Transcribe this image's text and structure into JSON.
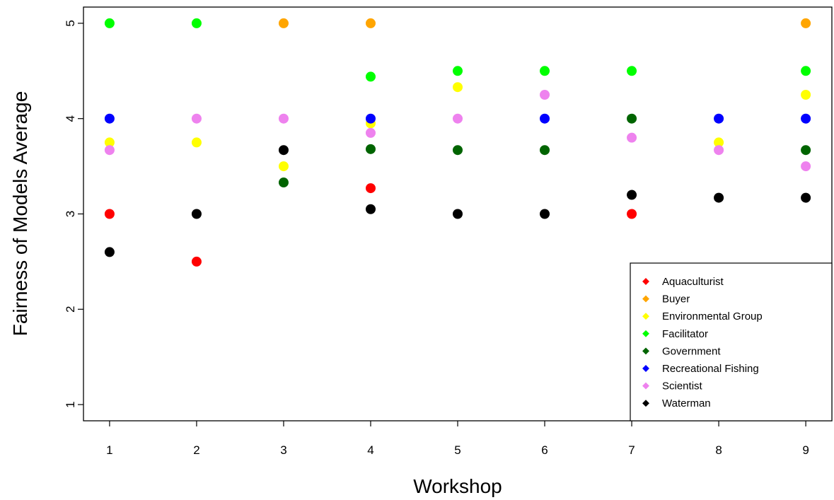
{
  "chart_data": {
    "type": "scatter",
    "xlabel": "Workshop",
    "ylabel": "Fairness of Models Average",
    "xlim": [
      0.7,
      9.3
    ],
    "ylim": [
      0.83,
      5.17
    ],
    "x_ticks": [
      1,
      2,
      3,
      4,
      5,
      6,
      7,
      8,
      9
    ],
    "y_ticks": [
      1,
      2,
      3,
      4,
      5
    ],
    "legend_position": "bottom-right",
    "series": [
      {
        "name": "Aquaculturist",
        "color": "#ff0000",
        "points": [
          [
            1,
            3.0
          ],
          [
            2,
            2.5
          ],
          [
            4,
            3.27
          ],
          [
            7,
            3.0
          ]
        ]
      },
      {
        "name": "Buyer",
        "color": "#ffa500",
        "points": [
          [
            3,
            5.0
          ],
          [
            4,
            5.0
          ],
          [
            9,
            5.0
          ]
        ]
      },
      {
        "name": "Environmental Group",
        "color": "#ffff00",
        "points": [
          [
            1,
            3.75
          ],
          [
            2,
            3.75
          ],
          [
            3,
            3.5
          ],
          [
            4,
            3.95
          ],
          [
            5,
            4.33
          ],
          [
            8,
            3.75
          ],
          [
            9,
            4.25
          ]
        ]
      },
      {
        "name": "Facilitator",
        "color": "#00ff00",
        "points": [
          [
            1,
            5.0
          ],
          [
            2,
            5.0
          ],
          [
            4,
            4.44
          ],
          [
            5,
            4.5
          ],
          [
            6,
            4.5
          ],
          [
            7,
            4.5
          ],
          [
            9,
            4.5
          ]
        ]
      },
      {
        "name": "Government",
        "color": "#006400",
        "points": [
          [
            3,
            3.33
          ],
          [
            4,
            3.68
          ],
          [
            5,
            3.67
          ],
          [
            6,
            3.67
          ],
          [
            7,
            4.0
          ],
          [
            9,
            3.67
          ]
        ]
      },
      {
        "name": "Recreational Fishing",
        "color": "#0000ff",
        "points": [
          [
            1,
            4.0
          ],
          [
            4,
            4.0
          ],
          [
            6,
            4.0
          ],
          [
            8,
            4.0
          ],
          [
            9,
            4.0
          ]
        ]
      },
      {
        "name": "Scientist",
        "color": "#ee82ee",
        "points": [
          [
            1,
            3.67
          ],
          [
            2,
            4.0
          ],
          [
            3,
            4.0
          ],
          [
            4,
            3.85
          ],
          [
            5,
            4.0
          ],
          [
            6,
            4.25
          ],
          [
            7,
            3.8
          ],
          [
            8,
            3.67
          ],
          [
            9,
            3.5
          ]
        ]
      },
      {
        "name": "Waterman",
        "color": "#000000",
        "points": [
          [
            1,
            2.6
          ],
          [
            2,
            3.0
          ],
          [
            3,
            3.67
          ],
          [
            4,
            3.05
          ],
          [
            5,
            3.0
          ],
          [
            6,
            3.0
          ],
          [
            7,
            3.2
          ],
          [
            8,
            3.17
          ],
          [
            9,
            3.17
          ]
        ]
      }
    ]
  }
}
